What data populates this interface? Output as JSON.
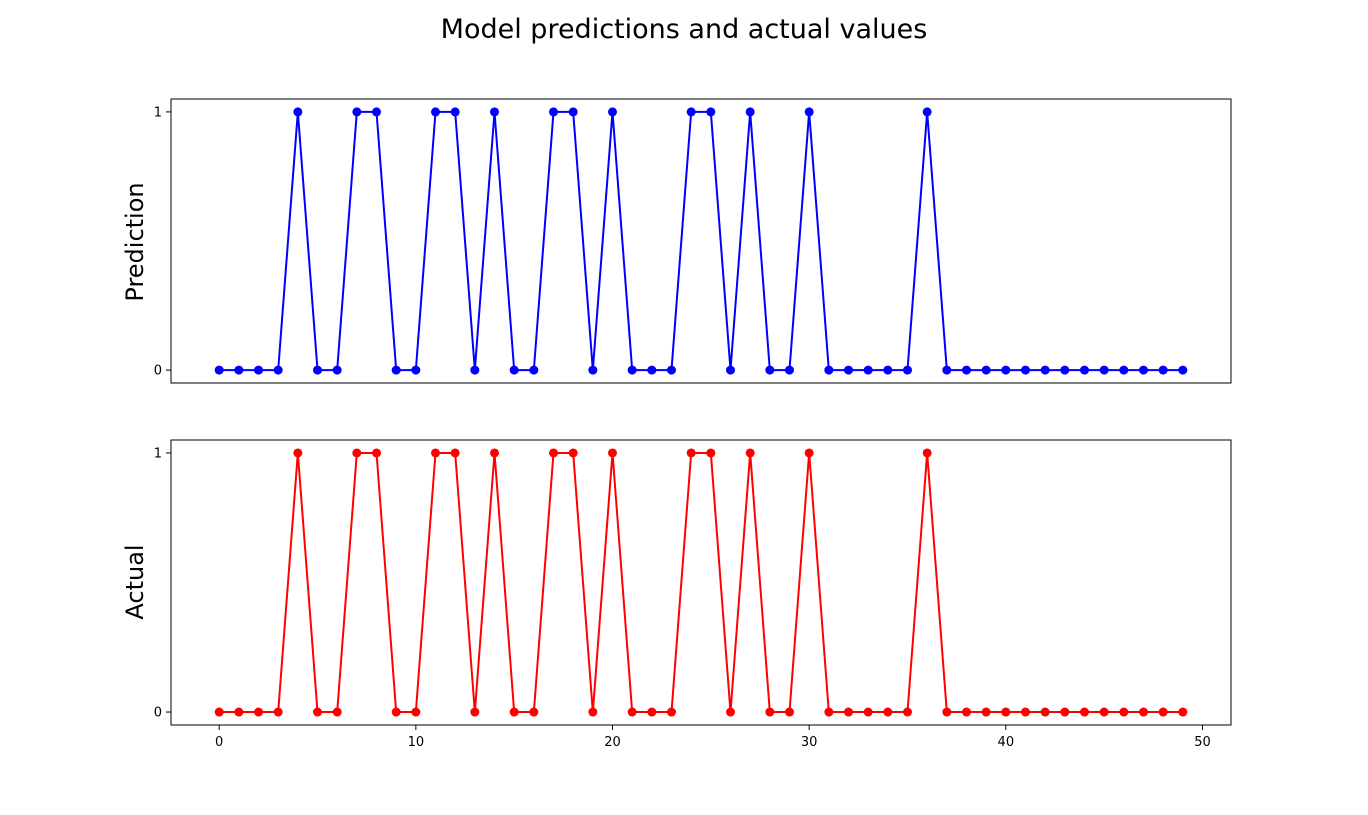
{
  "chart_data": [
    {
      "type": "line",
      "title": "Model predictions and actual values",
      "ylabel": "Prediction",
      "xlabel": "",
      "color": "#0000ff",
      "marker": "circle",
      "x": [
        0,
        1,
        2,
        3,
        4,
        5,
        6,
        7,
        8,
        9,
        10,
        11,
        12,
        13,
        14,
        15,
        16,
        17,
        18,
        19,
        20,
        21,
        22,
        23,
        24,
        25,
        26,
        27,
        28,
        29,
        30,
        31,
        32,
        33,
        34,
        35,
        36,
        37,
        38,
        39,
        40,
        41,
        42,
        43,
        44,
        45,
        46,
        47,
        48,
        49
      ],
      "values": [
        0,
        0,
        0,
        0,
        1,
        0,
        0,
        1,
        1,
        0,
        0,
        1,
        1,
        0,
        1,
        0,
        0,
        1,
        1,
        0,
        1,
        0,
        0,
        0,
        1,
        1,
        0,
        1,
        0,
        0,
        1,
        0,
        0,
        0,
        0,
        0,
        1,
        0,
        0,
        0,
        0,
        0,
        0,
        0,
        0,
        0,
        0,
        0,
        0,
        0
      ],
      "xlim": [
        -2.45,
        51.45
      ],
      "ylim": [
        -0.05,
        1.05
      ],
      "yticks": [
        0,
        1
      ],
      "xticks": [],
      "grid": false
    },
    {
      "type": "line",
      "title": "",
      "ylabel": "Actual",
      "xlabel": "",
      "color": "#ff0000",
      "marker": "circle",
      "x": [
        0,
        1,
        2,
        3,
        4,
        5,
        6,
        7,
        8,
        9,
        10,
        11,
        12,
        13,
        14,
        15,
        16,
        17,
        18,
        19,
        20,
        21,
        22,
        23,
        24,
        25,
        26,
        27,
        28,
        29,
        30,
        31,
        32,
        33,
        34,
        35,
        36,
        37,
        38,
        39,
        40,
        41,
        42,
        43,
        44,
        45,
        46,
        47,
        48,
        49
      ],
      "values": [
        0,
        0,
        0,
        0,
        1,
        0,
        0,
        1,
        1,
        0,
        0,
        1,
        1,
        0,
        1,
        0,
        0,
        1,
        1,
        0,
        1,
        0,
        0,
        0,
        1,
        1,
        0,
        1,
        0,
        0,
        1,
        0,
        0,
        0,
        0,
        0,
        1,
        0,
        0,
        0,
        0,
        0,
        0,
        0,
        0,
        0,
        0,
        0,
        0,
        0
      ],
      "xlim": [
        -2.45,
        51.45
      ],
      "ylim": [
        -0.05,
        1.05
      ],
      "yticks": [
        0,
        1
      ],
      "xticks": [
        0,
        10,
        20,
        30,
        40,
        50
      ],
      "grid": false
    }
  ]
}
